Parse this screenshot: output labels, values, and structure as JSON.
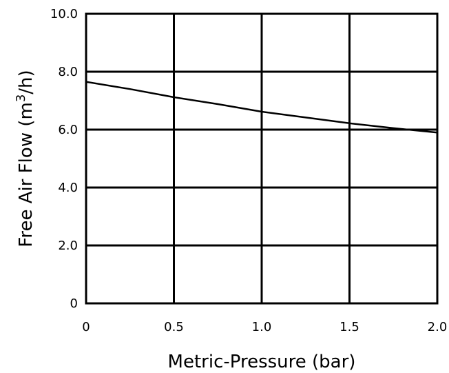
{
  "chart_data": {
    "type": "line",
    "title": "",
    "xlabel": "Metric-Pressure (bar)",
    "ylabel_prefix": "Free Air Flow (m",
    "ylabel_superscript": "3",
    "ylabel_suffix": "/h)",
    "xlim": [
      0,
      2.0
    ],
    "ylim": [
      0,
      10.0
    ],
    "x_ticks": [
      0,
      0.5,
      1.0,
      1.5,
      2.0
    ],
    "x_tick_labels": [
      "0",
      "0.5",
      "1.0",
      "1.5",
      "2.0"
    ],
    "y_ticks": [
      0,
      2.0,
      4.0,
      6.0,
      8.0,
      10.0
    ],
    "y_tick_labels": [
      "0",
      "2.0",
      "4.0",
      "6.0",
      "8.0",
      "10.0"
    ],
    "grid": true,
    "series": [
      {
        "x": [
          0,
          0.25,
          0.5,
          0.75,
          1.0,
          1.25,
          1.5,
          1.75,
          2.0
        ],
        "y": [
          7.65,
          7.4,
          7.12,
          6.88,
          6.62,
          6.42,
          6.22,
          6.05,
          5.9
        ]
      }
    ]
  }
}
